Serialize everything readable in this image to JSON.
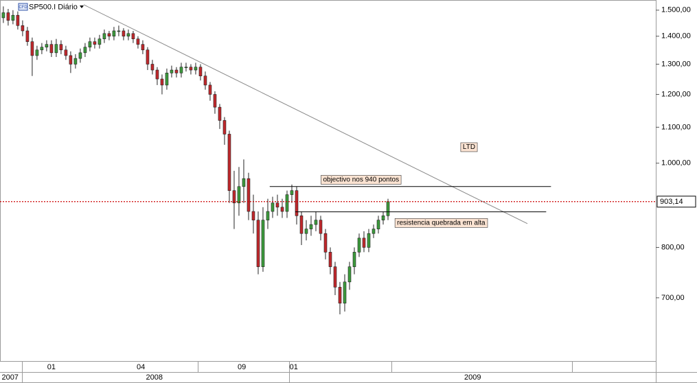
{
  "chart_data": {
    "type": "candlestick",
    "title": "SP500.I Diário",
    "icon_label": "CFD",
    "log_scale": true,
    "ylim": [
      592,
      1541
    ],
    "xlim": [
      -0.7,
      135.7
    ],
    "yticks": [
      {
        "value": 1500,
        "label": "1.500,00"
      },
      {
        "value": 1400,
        "label": "1.400,00"
      },
      {
        "value": 1300,
        "label": "1.300,00"
      },
      {
        "value": 1200,
        "label": "1.200,00"
      },
      {
        "value": 1100,
        "label": "1.100,00"
      },
      {
        "value": 1000,
        "label": "1.000,00"
      },
      {
        "value": 800,
        "label": "800,00"
      },
      {
        "value": 700,
        "label": "700,00"
      }
    ],
    "xticks": [
      {
        "value": 10,
        "label": "01"
      },
      {
        "value": 28.6,
        "label": "04"
      },
      {
        "value": 49.6,
        "label": "09"
      },
      {
        "value": 60.4,
        "label": "01"
      }
    ],
    "xticks_year": [
      {
        "value": 1.4,
        "label": "2007"
      },
      {
        "value": 31.4,
        "label": "2008"
      },
      {
        "value": 97.6,
        "label": "2009"
      }
    ],
    "up_color": "#3c9a3c",
    "down_color": "#c0282c",
    "open": [
      1470,
      1490,
      1460,
      1480,
      1440,
      1420,
      1380,
      1330,
      1350,
      1360,
      1370,
      1340,
      1370,
      1350,
      1330,
      1300,
      1320,
      1340,
      1360,
      1380,
      1370,
      1390,
      1410,
      1400,
      1420,
      1420,
      1400,
      1410,
      1390,
      1370,
      1350,
      1300,
      1280,
      1250,
      1230,
      1270,
      1280,
      1270,
      1290,
      1290,
      1280,
      1290,
      1260,
      1230,
      1200,
      1160,
      1120,
      1080,
      930,
      900,
      940,
      960,
      880,
      860,
      760,
      860,
      880,
      900,
      890,
      880,
      920,
      930,
      870,
      830,
      840,
      850,
      860,
      830,
      790,
      760,
      720,
      690,
      730,
      760,
      790,
      820,
      800,
      830,
      840,
      860,
      870
    ],
    "high": [
      1515,
      1505,
      1500,
      1495,
      1460,
      1435,
      1395,
      1365,
      1375,
      1385,
      1385,
      1390,
      1385,
      1365,
      1345,
      1335,
      1355,
      1375,
      1395,
      1395,
      1405,
      1425,
      1420,
      1435,
      1440,
      1430,
      1425,
      1420,
      1400,
      1385,
      1360,
      1315,
      1290,
      1265,
      1285,
      1295,
      1290,
      1305,
      1305,
      1300,
      1305,
      1300,
      1275,
      1240,
      1210,
      1170,
      1130,
      1090,
      980,
      990,
      1010,
      975,
      920,
      880,
      890,
      910,
      915,
      920,
      910,
      930,
      945,
      940,
      880,
      860,
      870,
      880,
      870,
      840,
      800,
      770,
      730,
      745,
      770,
      800,
      830,
      835,
      840,
      850,
      870,
      880,
      910
    ],
    "low": [
      1450,
      1440,
      1445,
      1425,
      1400,
      1365,
      1260,
      1315,
      1335,
      1345,
      1325,
      1325,
      1335,
      1315,
      1270,
      1285,
      1305,
      1325,
      1345,
      1355,
      1355,
      1375,
      1385,
      1385,
      1400,
      1385,
      1385,
      1375,
      1355,
      1335,
      1280,
      1265,
      1230,
      1200,
      1215,
      1255,
      1255,
      1255,
      1275,
      1265,
      1265,
      1245,
      1215,
      1180,
      1140,
      1095,
      1050,
      900,
      840,
      870,
      900,
      860,
      830,
      745,
      750,
      840,
      865,
      870,
      865,
      865,
      900,
      850,
      805,
      815,
      825,
      835,
      815,
      775,
      745,
      705,
      670,
      675,
      715,
      745,
      780,
      790,
      790,
      820,
      830,
      850,
      860
    ],
    "close": [
      1490,
      1460,
      1480,
      1440,
      1420,
      1380,
      1330,
      1350,
      1360,
      1370,
      1340,
      1370,
      1350,
      1330,
      1300,
      1320,
      1340,
      1360,
      1380,
      1370,
      1390,
      1410,
      1400,
      1420,
      1420,
      1400,
      1410,
      1390,
      1370,
      1350,
      1300,
      1280,
      1250,
      1230,
      1270,
      1280,
      1270,
      1290,
      1290,
      1280,
      1290,
      1260,
      1230,
      1200,
      1160,
      1120,
      1080,
      930,
      900,
      940,
      960,
      880,
      860,
      760,
      860,
      880,
      900,
      890,
      880,
      920,
      930,
      870,
      830,
      840,
      850,
      860,
      830,
      790,
      760,
      720,
      690,
      730,
      760,
      790,
      820,
      800,
      830,
      840,
      860,
      870,
      903.14
    ],
    "last_price": {
      "value": 903.14,
      "label": "903,14",
      "color": "#cc0000"
    },
    "trendline": {
      "label": "LTD",
      "x": [
        16.7,
        109
      ],
      "y": [
        1522,
        852
      ],
      "color": "#888888"
    },
    "levels": [
      {
        "label": "objectivo nos 940 pontos",
        "value": 940,
        "x": [
          55.4,
          113.9
        ]
      },
      {
        "label": "resistencia quebrada em alta",
        "value": 879,
        "x": [
          60.7,
          112.9
        ]
      }
    ]
  }
}
